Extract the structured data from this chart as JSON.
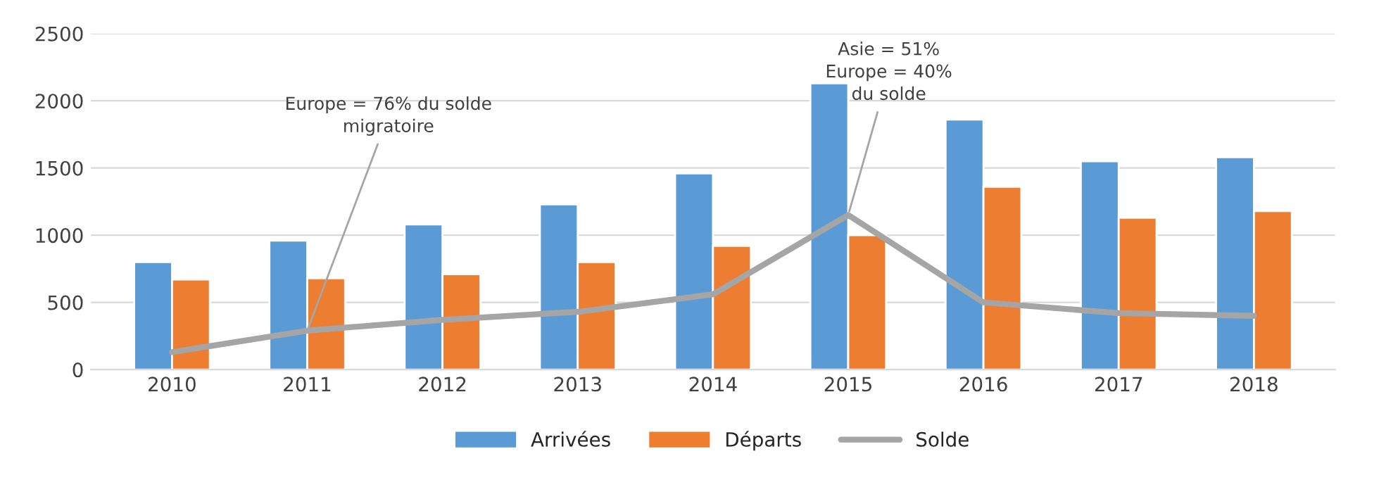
{
  "chart_data": {
    "type": "bar",
    "categories": [
      "2010",
      "2011",
      "2012",
      "2013",
      "2014",
      "2015",
      "2016",
      "2017",
      "2018"
    ],
    "series": [
      {
        "name": "Arrivées",
        "color": "#5b9bd5",
        "values": [
          800,
          960,
          1080,
          1230,
          1460,
          2130,
          1860,
          1550,
          1580
        ]
      },
      {
        "name": "Départs",
        "color": "#ed7d31",
        "values": [
          670,
          680,
          710,
          800,
          920,
          1000,
          1360,
          1130,
          1180
        ]
      },
      {
        "name": "Solde",
        "type": "line",
        "color": "#a5a5a5",
        "values": [
          130,
          290,
          370,
          430,
          560,
          1150,
          500,
          420,
          400
        ]
      }
    ],
    "ylim": [
      0,
      2500
    ],
    "yticks": [
      0,
      500,
      1000,
      1500,
      2000,
      2500
    ],
    "grid": "y",
    "legend": "bottom",
    "marker": "none",
    "line_style": "solid",
    "annotations": [
      {
        "text": "Europe = 76% du solde\nmigratoire",
        "x": "2011",
        "y": 290
      },
      {
        "text": "Asie = 51%\nEurope = 40%\ndu solde",
        "x": "2015",
        "y": 1150
      }
    ]
  }
}
